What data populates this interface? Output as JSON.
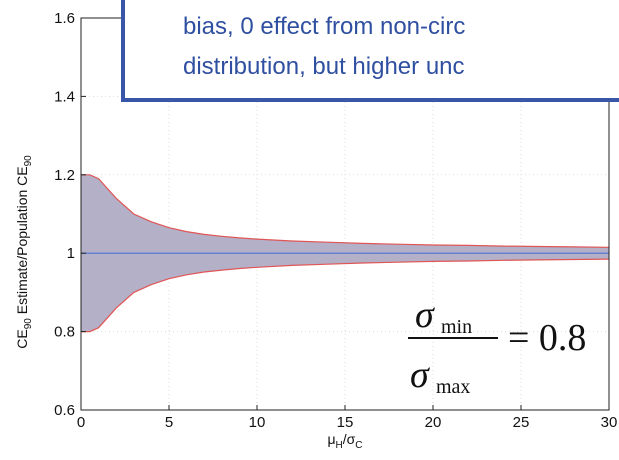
{
  "chart_data": {
    "type": "area",
    "xlabel": {
      "main": "μ",
      "sub1": "H",
      "mid": "/σ",
      "sub2": "C"
    },
    "ylabel": {
      "pre": "CE",
      "sub1": "90",
      "mid": " Estimate/Population CE",
      "sub2": "90"
    },
    "xlim": [
      0,
      30
    ],
    "ylim": [
      0.6,
      1.6
    ],
    "x_ticks": [
      0,
      5,
      10,
      15,
      20,
      25,
      30
    ],
    "x_tick_labels": [
      "0",
      "5",
      "10",
      "15",
      "20",
      "25",
      "30"
    ],
    "y_ticks": [
      0.6,
      0.8,
      1,
      1.2,
      1.4,
      1.6
    ],
    "y_tick_labels": [
      "0.6",
      "0.8",
      "1",
      "1.2",
      "1.4",
      "1.6"
    ],
    "grid": true,
    "series": [
      {
        "kind": "band",
        "x": [
          0,
          0.5,
          1,
          2,
          3,
          4,
          5,
          6,
          7,
          8,
          9,
          10,
          12,
          14,
          16,
          18,
          20,
          22,
          24,
          26,
          28,
          30
        ],
        "upper": [
          1.2,
          1.2,
          1.19,
          1.14,
          1.1,
          1.08,
          1.065,
          1.055,
          1.048,
          1.043,
          1.039,
          1.036,
          1.031,
          1.028,
          1.025,
          1.023,
          1.021,
          1.02,
          1.018,
          1.017,
          1.016,
          1.015
        ],
        "lower": [
          0.8,
          0.8,
          0.81,
          0.86,
          0.9,
          0.92,
          0.935,
          0.945,
          0.952,
          0.957,
          0.961,
          0.964,
          0.969,
          0.972,
          0.975,
          0.977,
          0.979,
          0.98,
          0.982,
          0.983,
          0.984,
          0.985
        ],
        "fill": "#b3b0c7",
        "edge": "#e05555"
      },
      {
        "kind": "line",
        "x": [
          0,
          30
        ],
        "y": [
          1,
          1
        ],
        "color": "#4a6fd8"
      }
    ],
    "annotations": {
      "callout_lines": [
        "bias, 0 effect from non-circ",
        "distribution, but higher unc"
      ],
      "callout_border_color": "#3a56a8",
      "callout_text_color": "#2f4fa0",
      "formula": {
        "numerator": "σ",
        "numerator_sub": "min",
        "denominator": "σ",
        "denominator_sub": "max",
        "equals": "= 0.8"
      }
    }
  }
}
